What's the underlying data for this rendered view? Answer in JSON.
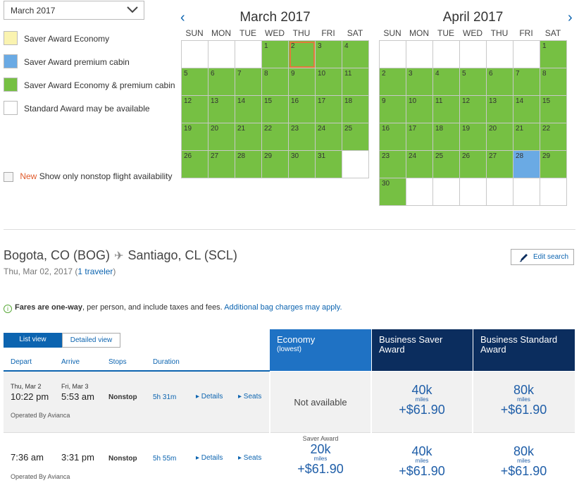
{
  "month_select": {
    "value": "March 2017"
  },
  "legend": [
    {
      "label": "Saver Award Economy",
      "color": "#faf3b0"
    },
    {
      "label": "Saver Award premium cabin",
      "color": "#6aaae4"
    },
    {
      "label": "Saver Award Economy & premium cabin",
      "color": "#76c043"
    },
    {
      "label": "Standard Award may be available",
      "color": "#ffffff"
    }
  ],
  "nonstop": {
    "new_label": "New",
    "label": "Show only nonstop flight availability"
  },
  "calendar": {
    "prev_icon": "‹",
    "next_icon": "›",
    "dow": [
      "SUN",
      "MON",
      "TUE",
      "WED",
      "THU",
      "FRI",
      "SAT"
    ],
    "months": [
      {
        "title": "March 2017",
        "leading_blanks": 3,
        "days": 31,
        "selected": 2,
        "green": [
          1,
          2,
          3,
          4,
          5,
          6,
          7,
          8,
          9,
          10,
          11,
          12,
          13,
          14,
          15,
          16,
          17,
          18,
          19,
          20,
          21,
          22,
          23,
          24,
          25,
          26,
          27,
          28,
          29,
          30,
          31
        ],
        "blue": [],
        "trailing_blanks": 1
      },
      {
        "title": "April 2017",
        "leading_blanks": 6,
        "days": 30,
        "selected": null,
        "green": [
          1,
          2,
          3,
          4,
          5,
          6,
          7,
          8,
          9,
          10,
          11,
          12,
          13,
          14,
          15,
          16,
          17,
          18,
          19,
          20,
          21,
          22,
          23,
          24,
          25,
          26,
          27,
          29,
          30
        ],
        "blue": [
          28
        ],
        "trailing_blanks": 6
      }
    ]
  },
  "route": {
    "origin": "Bogota, CO (BOG)",
    "plane_icon": "✈",
    "destination": "Santiago, CL (SCL)",
    "date": "Thu, Mar 02, 2017 (",
    "travelers": "1 traveler",
    "close_paren": ")"
  },
  "edit_search": "Edit search",
  "fares_note": {
    "info_icon": "i",
    "bold": "Fares are one-way",
    "text": ", per person, and include taxes and fees. ",
    "link": "Additional bag charges may apply."
  },
  "view_toggle": {
    "list": "List view",
    "detailed": "Detailed view"
  },
  "columns": {
    "depart": "Depart",
    "arrive": "Arrive",
    "stops": "Stops",
    "duration": "Duration"
  },
  "cabins": {
    "economy": "Economy",
    "economy_sub": "(lowest)",
    "business_saver": "Business Saver Award",
    "business_standard": "Business Standard Award"
  },
  "flights": [
    {
      "depart_date": "Thu, Mar 2",
      "depart_time": "10:22 pm",
      "arrive_date": "Fri, Mar 3",
      "arrive_time": "5:53 am",
      "stops": "Nonstop",
      "duration": "5h 31m",
      "details": "▸ Details",
      "seats": "▸ Seats",
      "operated": "Operated By Avianca",
      "economy_na": "Not available",
      "bsaver_miles": "40k",
      "bsaver_unit": "miles",
      "bsaver_tax": "+$61.90",
      "bstd_miles": "80k",
      "bstd_unit": "miles",
      "bstd_tax": "+$61.90"
    },
    {
      "depart_time": "7:36 am",
      "arrive_time": "3:31 pm",
      "stops": "Nonstop",
      "duration": "5h 55m",
      "details": "▸ Details",
      "seats": "▸ Seats",
      "operated": "Operated By Avianca",
      "econ_award": "Saver Award",
      "econ_miles": "20k",
      "econ_unit": "miles",
      "econ_tax": "+$61.90",
      "bsaver_miles": "40k",
      "bsaver_unit": "miles",
      "bsaver_tax": "+$61.90",
      "bstd_miles": "80k",
      "bstd_unit": "miles",
      "bstd_tax": "+$61.90"
    }
  ]
}
